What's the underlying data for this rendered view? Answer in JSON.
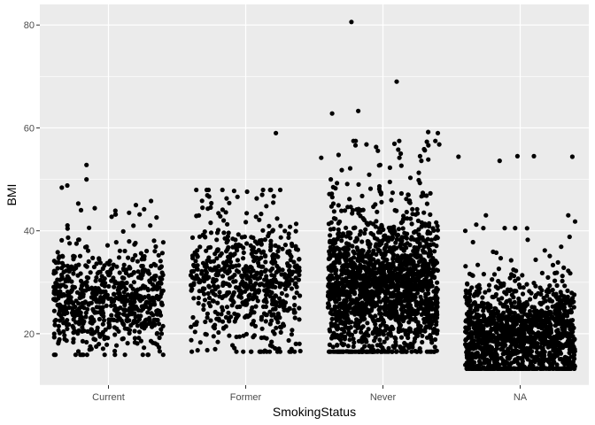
{
  "chart_data": {
    "type": "scatter",
    "subtype": "jitter-strip",
    "title": "",
    "xlabel": "SmokingStatus",
    "ylabel": "BMI",
    "categories": [
      "Current",
      "Former",
      "Never",
      "NA"
    ],
    "ylim": [
      10,
      84
    ],
    "yticks": [
      20,
      40,
      60,
      80
    ],
    "grid": true,
    "colors": {
      "panel": "#ebebeb",
      "grid": "#ffffff",
      "point": "#000000"
    },
    "groups": [
      {
        "category": "Current",
        "range": [
          15.9,
          52.8
        ],
        "core_range": [
          18,
          38
        ],
        "center": 26,
        "approx_points": 700,
        "outliers": [
          {
            "x": -0.34,
            "y": 48.4
          },
          {
            "x": -0.3,
            "y": 48.8
          },
          {
            "x": -0.16,
            "y": 52.8
          },
          {
            "x": -0.16,
            "y": 50.0
          },
          {
            "x": -0.22,
            "y": 45.3
          },
          {
            "x": -0.1,
            "y": 44.4
          },
          {
            "x": 0.2,
            "y": 45.0
          },
          {
            "x": 0.31,
            "y": 45.8
          },
          {
            "x": 0.26,
            "y": 44.2
          },
          {
            "x": 0.35,
            "y": 42.6
          },
          {
            "x": 0.15,
            "y": 43.5
          },
          {
            "x": 0.05,
            "y": 43.9
          },
          {
            "x": 0.25,
            "y": 15.9
          },
          {
            "x": -0.2,
            "y": 44.0
          }
        ]
      },
      {
        "category": "Former",
        "range": [
          16.5,
          59.0
        ],
        "core_range": [
          18,
          42
        ],
        "center": 29,
        "approx_points": 650,
        "outliers": [
          {
            "x": 0.22,
            "y": 59.0
          },
          {
            "x": 0.01,
            "y": 47.6
          },
          {
            "x": 0.12,
            "y": 47.0
          },
          {
            "x": 0.08,
            "y": 46.3
          },
          {
            "x": -0.06,
            "y": 46.6
          },
          {
            "x": -0.12,
            "y": 45.4
          },
          {
            "x": 0.15,
            "y": 44.8
          },
          {
            "x": -0.28,
            "y": 16.8
          },
          {
            "x": 0.14,
            "y": 16.7
          }
        ]
      },
      {
        "category": "Never",
        "range": [
          16.5,
          80.6
        ],
        "core_range": [
          18,
          45
        ],
        "center": 28,
        "approx_points": 1800,
        "outliers": [
          {
            "x": -0.23,
            "y": 80.6
          },
          {
            "x": 0.1,
            "y": 69.0
          },
          {
            "x": -0.18,
            "y": 63.3
          },
          {
            "x": -0.37,
            "y": 62.8
          },
          {
            "x": 0.33,
            "y": 59.2
          },
          {
            "x": 0.4,
            "y": 59.0
          },
          {
            "x": 0.32,
            "y": 57.3
          },
          {
            "x": 0.41,
            "y": 56.8
          },
          {
            "x": -0.12,
            "y": 56.8
          },
          {
            "x": -0.2,
            "y": 56.6
          },
          {
            "x": -0.05,
            "y": 56.3
          },
          {
            "x": 0.13,
            "y": 55.0
          },
          {
            "x": 0.12,
            "y": 54.2
          },
          {
            "x": -0.45,
            "y": 54.2
          },
          {
            "x": 0.27,
            "y": 54.5
          },
          {
            "x": 0.28,
            "y": 53.6
          },
          {
            "x": -0.02,
            "y": 52.8
          },
          {
            "x": -0.3,
            "y": 51.8
          },
          {
            "x": -0.1,
            "y": 50.9
          },
          {
            "x": 0.2,
            "y": 50.3
          },
          {
            "x": -0.38,
            "y": 50.0
          },
          {
            "x": 0.05,
            "y": 49.5
          },
          {
            "x": -0.26,
            "y": 49.1
          }
        ]
      },
      {
        "category": "NA",
        "range": [
          13.2,
          54.5
        ],
        "core_range": [
          13.5,
          33
        ],
        "center": 19,
        "approx_points": 1400,
        "outliers": [
          {
            "x": -0.45,
            "y": 54.4
          },
          {
            "x": -0.15,
            "y": 53.6
          },
          {
            "x": -0.02,
            "y": 54.5
          },
          {
            "x": 0.1,
            "y": 54.5
          },
          {
            "x": 0.38,
            "y": 54.4
          },
          {
            "x": -0.25,
            "y": 43.0
          },
          {
            "x": 0.35,
            "y": 43.0
          },
          {
            "x": 0.4,
            "y": 41.8
          },
          {
            "x": -0.32,
            "y": 41.2
          },
          {
            "x": 0.05,
            "y": 40.5
          },
          {
            "x": -0.4,
            "y": 40.0
          }
        ]
      }
    ]
  }
}
